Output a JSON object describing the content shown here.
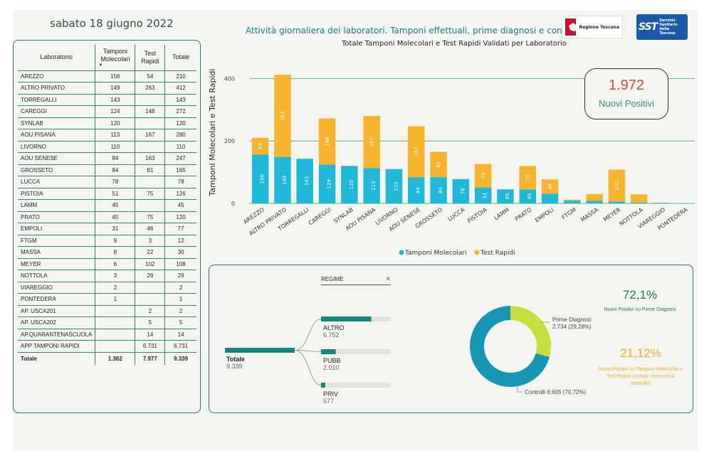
{
  "header": {
    "date": "sabato 18 giugno 2022",
    "page_title": "Attività giornaliera dei laboratori. Tamponi effettuali, prime diagnosi e controlli",
    "chart_title": "Totale Tamponi Molecolari e Test Rapidi Validati per Laboratorio",
    "logo_toscana_text": "Regione Toscana",
    "logo_sst_big": "SST",
    "logo_sst_small": [
      "Servizio",
      "Sanitario",
      "della",
      "Toscana"
    ]
  },
  "colors": {
    "molecolari": "#1fb8d9",
    "rapidi": "#f6b52c",
    "teal_dark": "#14877a",
    "donut_big": "#1696b2",
    "donut_small": "#c3e03e",
    "kpi_red": "#c0503a"
  },
  "table": {
    "headers": [
      "Laboratorio",
      "Tamponi Molecolari",
      "Test Rapidi",
      "Totale"
    ],
    "rows": [
      [
        "AREZZO",
        "156",
        "54",
        "210"
      ],
      [
        "ALTRO PRIVATO",
        "149",
        "263",
        "412"
      ],
      [
        "TORREGALLI",
        "143",
        "",
        "143"
      ],
      [
        "CAREGGI",
        "124",
        "148",
        "272"
      ],
      [
        "SYNLAB",
        "120",
        "",
        "120"
      ],
      [
        "AOU PISANA",
        "113",
        "167",
        "280"
      ],
      [
        "LIVORNO",
        "110",
        "",
        "110"
      ],
      [
        "AOU SENESE",
        "84",
        "163",
        "247"
      ],
      [
        "GROSSETO",
        "84",
        "81",
        "165"
      ],
      [
        "LUCCA",
        "78",
        "",
        "78"
      ],
      [
        "PISTOIA",
        "51",
        "75",
        "126"
      ],
      [
        "LAMM",
        "45",
        "",
        "45"
      ],
      [
        "PRATO",
        "45",
        "75",
        "120"
      ],
      [
        "EMPOLI",
        "31",
        "46",
        "77"
      ],
      [
        "FTGM",
        "9",
        "3",
        "12"
      ],
      [
        "MASSA",
        "8",
        "22",
        "30"
      ],
      [
        "MEYER",
        "6",
        "102",
        "108"
      ],
      [
        "NOTTOLA",
        "3",
        "26",
        "29"
      ],
      [
        "VIAREGGIO",
        "2",
        "",
        "2"
      ],
      [
        "PONTEDERA",
        "1",
        "",
        "1"
      ],
      [
        "AP. USCA201",
        "",
        "2",
        "2"
      ],
      [
        "AP. USCA202",
        "",
        "5",
        "5"
      ],
      [
        "AP.QUARANTENASCUOLA",
        "",
        "14",
        "14"
      ],
      [
        "APP TAMPONI RAPIDI",
        "",
        "6.731",
        "6.731"
      ]
    ],
    "total": [
      "Totale",
      "1.362",
      "7.977",
      "9.339"
    ]
  },
  "chart_data": {
    "type": "bar",
    "stacked": true,
    "ylabel": "Tamponi Molecolari e Test Rapidi",
    "ylim": [
      0,
      460
    ],
    "yticks": [
      0,
      200,
      400
    ],
    "grid": true,
    "legend_position": "bottom",
    "categories": [
      "AREZZO",
      "ALTRO PRIVATO",
      "TORREGALLI",
      "CAREGGI",
      "SYNLAB",
      "AOU PISANA",
      "LIVORNO",
      "AOU SENESE",
      "GROSSETO",
      "LUCCA",
      "PISTOIA",
      "LAMM",
      "PRATO",
      "EMPOLI",
      "FTGM",
      "MASSA",
      "MEYER",
      "NOTTOLA",
      "VIAREGGIO",
      "PONTEDERA"
    ],
    "series": [
      {
        "name": "Tamponi Molecolari",
        "values": [
          156,
          149,
          143,
          124,
          120,
          113,
          110,
          84,
          84,
          78,
          51,
          45,
          45,
          31,
          9,
          8,
          6,
          3,
          2,
          1
        ]
      },
      {
        "name": "Test Rapidi",
        "values": [
          54,
          263,
          0,
          148,
          0,
          167,
          0,
          163,
          81,
          0,
          75,
          0,
          75,
          46,
          3,
          22,
          102,
          26,
          0,
          0
        ]
      }
    ]
  },
  "kpi": {
    "value": "1.972",
    "label": "Nuovi Positivi"
  },
  "tree": {
    "header": "REGIME",
    "close": "✕",
    "root": {
      "label": "Totale",
      "value": "9.339",
      "fill": 1.0
    },
    "children": [
      {
        "label": "ALTRO",
        "value": "6.752",
        "fill": 0.72
      },
      {
        "label": "PUBB",
        "value": "2.010",
        "fill": 0.21
      },
      {
        "label": "PRIV",
        "value": "577",
        "fill": 0.06
      }
    ]
  },
  "donut": {
    "slices": [
      {
        "name": "Prime Diagnosi",
        "label": "Prime Diagnosi",
        "value_label": "2.734 (29,28%)",
        "value": 2734
      },
      {
        "name": "Controlli",
        "label": "Controlli 6.605 (70,72%)",
        "value": 6605
      }
    ]
  },
  "stats": {
    "pct1": "72,1%",
    "pct1_label": "Nuovi Positivi su Prime Diagnosi",
    "pct2": "21,12%",
    "pct2_label": "Nuovi Positivi su Tamponi Molecolari e Test Rapidi (inclusi i tamponi di controllo)"
  }
}
